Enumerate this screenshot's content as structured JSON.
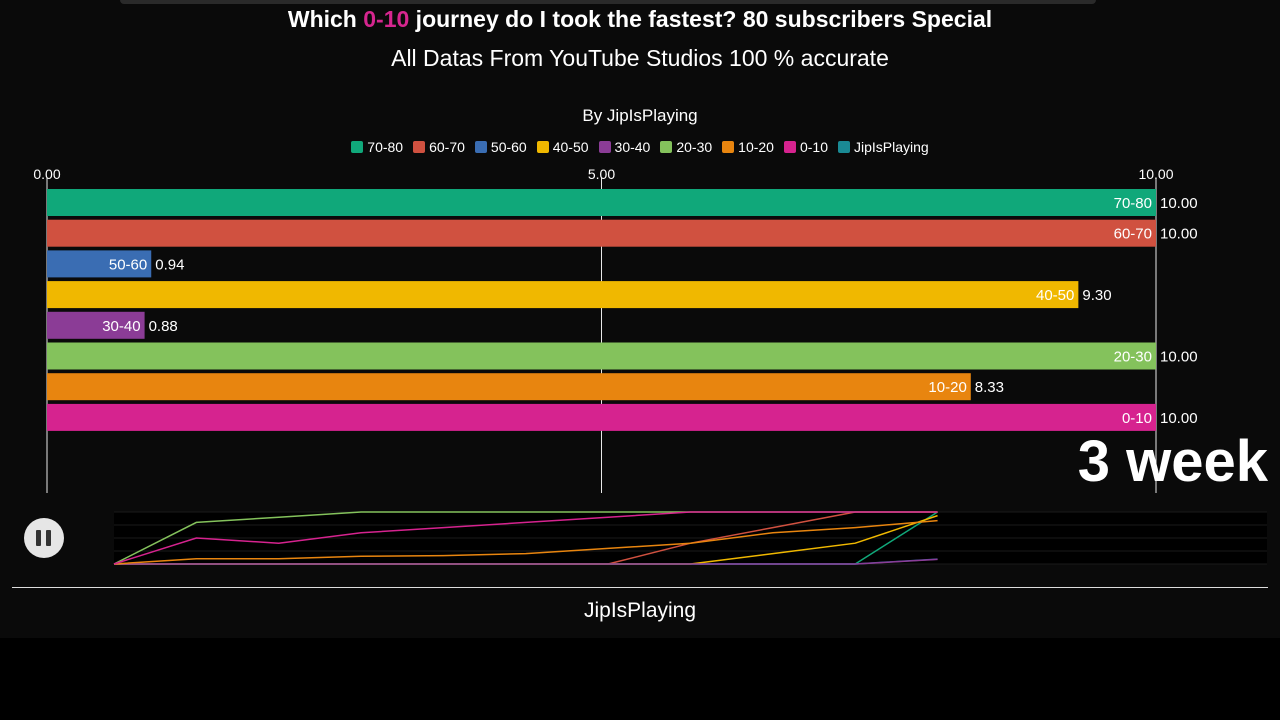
{
  "header": {
    "title_prefix": "Which ",
    "title_highlight": "0-10",
    "title_suffix": " journey do I took the fastest? 80 subscribers Special",
    "subtitle": "All Datas From YouTube Studios 100 % accurate",
    "byline": "By JipIsPlaying"
  },
  "legend": [
    {
      "label": "70-80",
      "color": "#10a87a"
    },
    {
      "label": "60-70",
      "color": "#d05140"
    },
    {
      "label": "50-60",
      "color": "#3a6db3"
    },
    {
      "label": "40-50",
      "color": "#f0b800"
    },
    {
      "label": "30-40",
      "color": "#8b3c96"
    },
    {
      "label": "20-30",
      "color": "#84c25c"
    },
    {
      "label": "10-20",
      "color": "#e8850f"
    },
    {
      "label": "0-10",
      "color": "#d6238f"
    },
    {
      "label": "JipIsPlaying",
      "color": "#1a8a94"
    }
  ],
  "chart_data": {
    "type": "bar",
    "orientation": "horizontal",
    "categories": [
      "70-80",
      "60-70",
      "50-60",
      "40-50",
      "30-40",
      "20-30",
      "10-20",
      "0-10"
    ],
    "values": [
      10.0,
      10.0,
      0.94,
      9.3,
      0.88,
      10.0,
      8.33,
      10.0
    ],
    "value_labels": [
      "10.00",
      "10.00",
      "0.94",
      "9.30",
      "0.88",
      "10.00",
      "8.33",
      "10.00"
    ],
    "colors": [
      "#10a87a",
      "#d05140",
      "#3a6db3",
      "#f0b800",
      "#8b3c96",
      "#84c25c",
      "#e8850f",
      "#d6238f"
    ],
    "xlim": [
      0,
      10
    ],
    "ticks": [
      "0.00",
      "5.00",
      "10.00"
    ],
    "grid": true,
    "legend_position": "top-center"
  },
  "date_label": "3 week",
  "controls": {
    "pause_icon": "pause-icon"
  },
  "mini_chart": {
    "x_max": 14,
    "current_x": 10,
    "y_max": 10,
    "series": [
      {
        "name": "70-80",
        "color": "#10a87a",
        "values": [
          0,
          0,
          0,
          0,
          0,
          0,
          0,
          0,
          0,
          0,
          10
        ]
      },
      {
        "name": "60-70",
        "color": "#d05140",
        "values": [
          0,
          0,
          0,
          0,
          0,
          0,
          0,
          4,
          7,
          10,
          10
        ]
      },
      {
        "name": "50-60",
        "color": "#3a6db3",
        "values": [
          0,
          0,
          0,
          0,
          0,
          0,
          0,
          0,
          0,
          0,
          0.94
        ]
      },
      {
        "name": "40-50",
        "color": "#f0b800",
        "values": [
          0,
          0,
          0,
          0,
          0,
          0,
          0,
          0,
          2,
          4,
          9.3
        ]
      },
      {
        "name": "30-40",
        "color": "#8b3c96",
        "values": [
          0,
          0,
          0,
          0,
          0,
          0,
          0,
          0,
          0,
          0,
          0.88
        ]
      },
      {
        "name": "20-30",
        "color": "#84c25c",
        "values": [
          0,
          8,
          9,
          10,
          10,
          10,
          10,
          10,
          10,
          10,
          10
        ]
      },
      {
        "name": "10-20",
        "color": "#e8850f",
        "values": [
          0,
          1,
          1,
          1.5,
          1.6,
          2,
          3,
          4,
          6,
          7,
          8.33
        ]
      },
      {
        "name": "0-10",
        "color": "#d6238f",
        "values": [
          0,
          5,
          4,
          6,
          7,
          8,
          9,
          10,
          10,
          10,
          10
        ]
      }
    ]
  },
  "footer": {
    "channel": "JipIsPlaying"
  }
}
